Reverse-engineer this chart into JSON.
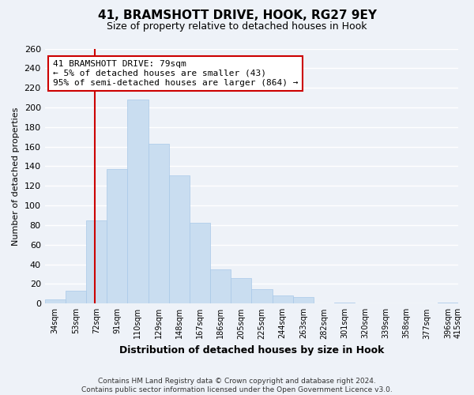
{
  "title": "41, BRAMSHOTT DRIVE, HOOK, RG27 9EY",
  "subtitle": "Size of property relative to detached houses in Hook",
  "xlabel": "Distribution of detached houses by size in Hook",
  "ylabel": "Number of detached properties",
  "bin_labels": [
    "34sqm",
    "53sqm",
    "72sqm",
    "91sqm",
    "110sqm",
    "129sqm",
    "148sqm",
    "167sqm",
    "186sqm",
    "205sqm",
    "225sqm",
    "244sqm",
    "263sqm",
    "282sqm",
    "301sqm",
    "320sqm",
    "339sqm",
    "358sqm",
    "377sqm",
    "396sqm"
  ],
  "bar_heights": [
    4,
    13,
    85,
    137,
    208,
    163,
    131,
    82,
    35,
    26,
    15,
    8,
    7,
    0,
    1,
    0,
    0,
    0,
    0,
    1
  ],
  "bar_color": "#c9ddf0",
  "bar_edge_color": "#a8c8e8",
  "vline_x_index": 2.42,
  "ylim": [
    0,
    260
  ],
  "yticks": [
    0,
    20,
    40,
    60,
    80,
    100,
    120,
    140,
    160,
    180,
    200,
    220,
    240,
    260
  ],
  "annotation_text_line1": "41 BRAMSHOTT DRIVE: 79sqm",
  "annotation_text_line2": "← 5% of detached houses are smaller (43)",
  "annotation_text_line3": "95% of semi-detached houses are larger (864) →",
  "vline_color": "#cc0000",
  "annotation_box_color": "#ffffff",
  "annotation_box_edge": "#cc0000",
  "footer_line1": "Contains HM Land Registry data © Crown copyright and database right 2024.",
  "footer_line2": "Contains public sector information licensed under the Open Government Licence v3.0.",
  "bg_color": "#eef2f8",
  "plot_bg_color": "#eef2f8",
  "grid_color": "#ffffff",
  "last_label": "415sqm"
}
